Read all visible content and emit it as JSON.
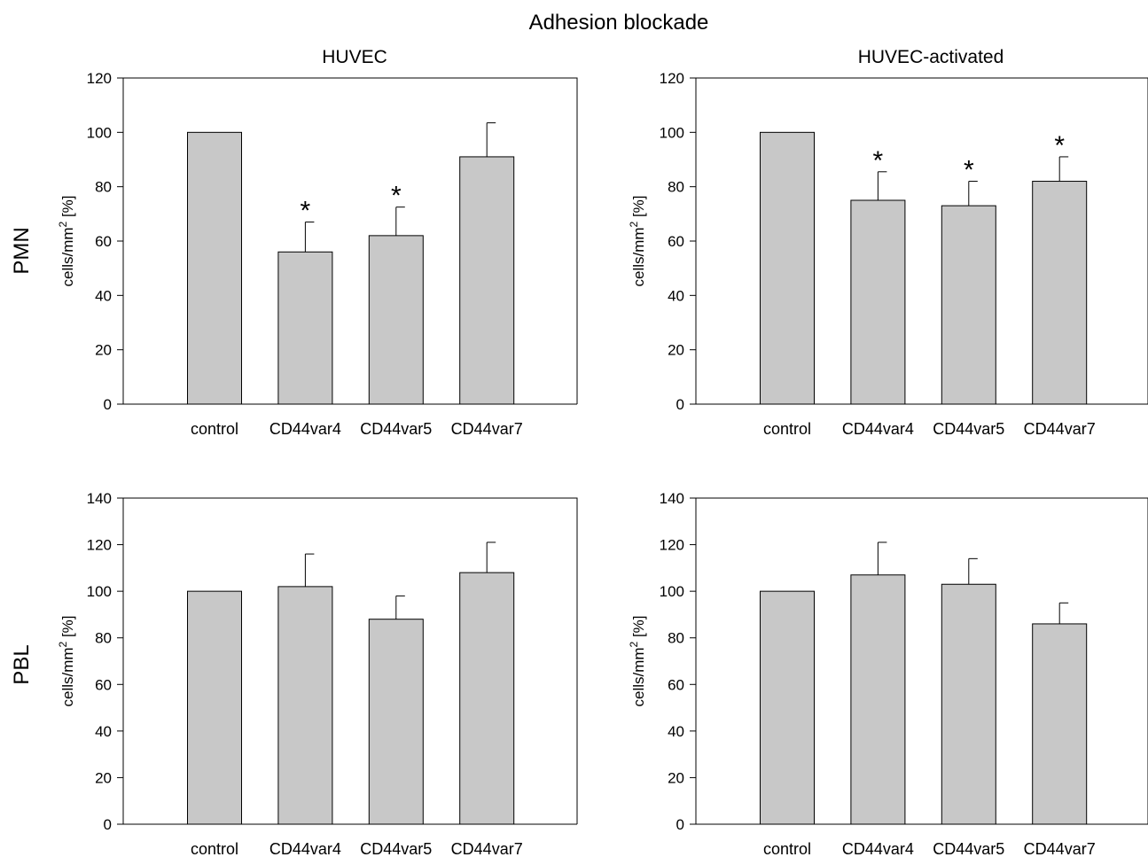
{
  "figure": {
    "title": "Adhesion blockade",
    "column_titles": [
      "HUVEC",
      "HUVEC-activated"
    ],
    "row_labels": [
      "PMN",
      "PBL"
    ]
  },
  "style": {
    "bar_fill": "#c8c8c8",
    "bar_stroke": "#000000",
    "axis_color": "#000000"
  },
  "chart_data": [
    {
      "type": "bar",
      "row": "PMN",
      "column": "HUVEC",
      "title": "HUVEC",
      "ylabel": "cells/mm² [%]",
      "ylabel_parts": {
        "pre": "cells/mm",
        "sup": "2",
        "post": " [%]"
      },
      "ylim": [
        0,
        120
      ],
      "yticks": [
        0,
        20,
        40,
        60,
        80,
        100,
        120
      ],
      "categories": [
        "control",
        "CD44var4",
        "CD44var5",
        "CD44var7"
      ],
      "values": [
        100,
        56,
        62,
        91
      ],
      "errors": [
        0,
        11,
        10.5,
        12.5
      ],
      "significance": [
        "",
        "*",
        "*",
        ""
      ]
    },
    {
      "type": "bar",
      "row": "PMN",
      "column": "HUVEC-activated",
      "title": "HUVEC-activated",
      "ylabel": "cells/mm² [%]",
      "ylabel_parts": {
        "pre": "cells/mm",
        "sup": "2",
        "post": " [%]"
      },
      "ylim": [
        0,
        120
      ],
      "yticks": [
        0,
        20,
        40,
        60,
        80,
        100,
        120
      ],
      "categories": [
        "control",
        "CD44var4",
        "CD44var5",
        "CD44var7"
      ],
      "values": [
        100,
        75,
        73,
        82
      ],
      "errors": [
        0,
        10.5,
        9,
        9
      ],
      "significance": [
        "",
        "*",
        "*",
        "*"
      ]
    },
    {
      "type": "bar",
      "row": "PBL",
      "column": "HUVEC",
      "title": "",
      "ylabel": "cells/mm² [%]",
      "ylabel_parts": {
        "pre": "cells/mm",
        "sup": "2",
        "post": " [%]"
      },
      "ylim": [
        0,
        140
      ],
      "yticks": [
        0,
        20,
        40,
        60,
        80,
        100,
        120,
        140
      ],
      "categories": [
        "control",
        "CD44var4",
        "CD44var5",
        "CD44var7"
      ],
      "values": [
        100,
        102,
        88,
        108
      ],
      "errors": [
        0,
        14,
        10,
        13
      ],
      "significance": [
        "",
        "",
        "",
        ""
      ]
    },
    {
      "type": "bar",
      "row": "PBL",
      "column": "HUVEC-activated",
      "title": "",
      "ylabel": "cells/mm² [%]",
      "ylabel_parts": {
        "pre": "cells/mm",
        "sup": "2",
        "post": " [%]"
      },
      "ylim": [
        0,
        140
      ],
      "yticks": [
        0,
        20,
        40,
        60,
        80,
        100,
        120,
        140
      ],
      "categories": [
        "control",
        "CD44var4",
        "CD44var5",
        "CD44var7"
      ],
      "values": [
        100,
        107,
        103,
        86
      ],
      "errors": [
        0,
        14,
        11,
        9
      ],
      "significance": [
        "",
        "",
        "",
        ""
      ]
    }
  ]
}
